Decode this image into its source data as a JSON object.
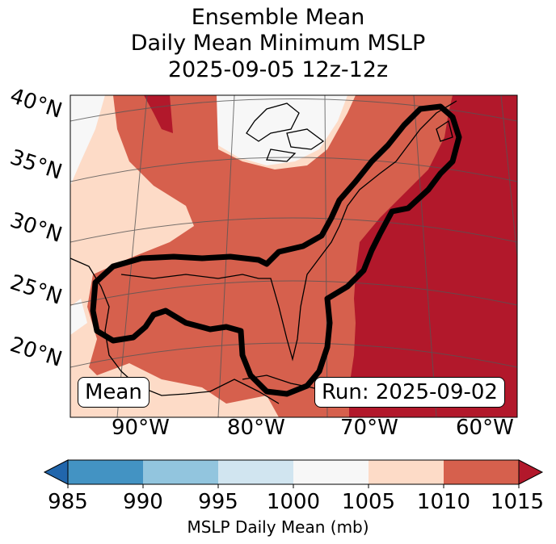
{
  "title": {
    "line1": "Ensemble Mean",
    "line2": "Daily Mean Minimum MSLP",
    "line3": "2025-09-05 12z-12z"
  },
  "map": {
    "lat_labels": [
      "40°N",
      "35°N",
      "30°N",
      "25°N",
      "20°N"
    ],
    "lon_labels": [
      "90°W",
      "80°W",
      "70°W",
      "60°W"
    ],
    "mean_label": "Mean",
    "run_label": "Run: 2025-09-02",
    "contour_color": "#000000",
    "land_edge_color": "#000000"
  },
  "colorbar": {
    "ticks": [
      "985",
      "990",
      "995",
      "1000",
      "1005",
      "1010",
      "1015"
    ],
    "label": "MSLP Daily Mean (mb)",
    "bins": [
      {
        "range": "<985",
        "color": "#2166ac"
      },
      {
        "range": "985-990",
        "color": "#4393c3"
      },
      {
        "range": "990-995",
        "color": "#92c5de"
      },
      {
        "range": "995-1000",
        "color": "#d1e5f0"
      },
      {
        "range": "1000-1005",
        "color": "#f7f7f7"
      },
      {
        "range": "1005-1010",
        "color": "#fddbc7"
      },
      {
        "range": "1010-1015",
        "color": "#d6604d"
      },
      {
        "range": ">1015",
        "color": "#b2182b"
      }
    ]
  }
}
